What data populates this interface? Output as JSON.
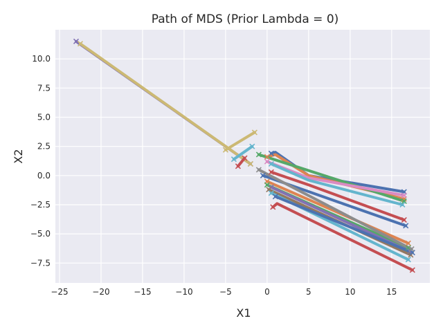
{
  "chart_data": {
    "type": "line",
    "title": "Path of MDS (Prior Lambda = 0)",
    "xlabel": "X1",
    "ylabel": "X2",
    "xlim": [
      -25.5,
      19.6
    ],
    "ylim": [
      -9.2,
      12.5
    ],
    "xticks": [
      -25,
      -20,
      -15,
      -10,
      -5,
      0,
      5,
      10,
      15
    ],
    "xtick_labels": [
      "−25",
      "−20",
      "−15",
      "−10",
      "−5",
      "0",
      "5",
      "10",
      "15"
    ],
    "yticks": [
      -7.5,
      -5.0,
      -2.5,
      0.0,
      2.5,
      5.0,
      7.5,
      10.0
    ],
    "ytick_labels": [
      "−7.5",
      "−5.0",
      "−2.5",
      "0.0",
      "2.5",
      "5.0",
      "7.5",
      "10.0"
    ],
    "grid": true,
    "background": "#eaeaf2",
    "series": [
      {
        "color": "#8172b3",
        "points": [
          [
            -23.0,
            11.5
          ],
          [
            -2.0,
            1.0
          ]
        ]
      },
      {
        "color": "#ccb974",
        "points": [
          [
            -22.5,
            11.3
          ],
          [
            -2.0,
            1.0
          ]
        ]
      },
      {
        "color": "#ccb974",
        "points": [
          [
            -5.0,
            2.2
          ],
          [
            -1.5,
            3.7
          ]
        ]
      },
      {
        "color": "#64b5cd",
        "points": [
          [
            -4.0,
            1.4
          ],
          [
            -1.8,
            2.5
          ]
        ]
      },
      {
        "color": "#c44e52",
        "points": [
          [
            -3.5,
            0.8
          ],
          [
            -2.7,
            1.5
          ]
        ]
      },
      {
        "color": "#4c72b0",
        "points": [
          [
            0.5,
            1.9
          ],
          [
            1.0,
            2.0
          ],
          [
            5.0,
            0.0
          ],
          [
            16.5,
            -1.4
          ]
        ]
      },
      {
        "color": "#dd8452",
        "points": [
          [
            0.0,
            1.6
          ],
          [
            1.0,
            1.8
          ],
          [
            5.0,
            0.0
          ],
          [
            16.5,
            -2.0
          ]
        ]
      },
      {
        "color": "#55a868",
        "points": [
          [
            -1.0,
            1.8
          ],
          [
            16.5,
            -2.2
          ]
        ]
      },
      {
        "color": "#da8bc3",
        "points": [
          [
            0.0,
            1.2
          ],
          [
            5.0,
            -0.2
          ],
          [
            16.5,
            -1.7
          ]
        ]
      },
      {
        "color": "#64b5cd",
        "points": [
          [
            0.5,
            1.0
          ],
          [
            5.0,
            -0.4
          ],
          [
            16.3,
            -2.5
          ]
        ]
      },
      {
        "color": "#c44e52",
        "points": [
          [
            0.5,
            0.3
          ],
          [
            5.0,
            -0.8
          ],
          [
            16.5,
            -3.8
          ]
        ]
      },
      {
        "color": "#4c72b0",
        "points": [
          [
            -0.5,
            0.0
          ],
          [
            16.7,
            -4.3
          ]
        ]
      },
      {
        "color": "#dd8452",
        "points": [
          [
            0.0,
            -0.5
          ],
          [
            17.0,
            -5.8
          ]
        ]
      },
      {
        "color": "#55a868",
        "points": [
          [
            0.0,
            -0.8
          ],
          [
            17.0,
            -6.2
          ]
        ]
      },
      {
        "color": "#8172b3",
        "points": [
          [
            0.5,
            -1.0
          ],
          [
            17.2,
            -6.5
          ]
        ]
      },
      {
        "color": "#937860",
        "points": [
          [
            0.2,
            -1.2
          ],
          [
            17.3,
            -6.8
          ]
        ]
      },
      {
        "color": "#64b5cd",
        "points": [
          [
            0.5,
            -1.5
          ],
          [
            17.0,
            -7.2
          ]
        ]
      },
      {
        "color": "#c44e52",
        "points": [
          [
            0.7,
            -2.7
          ],
          [
            1.2,
            -2.4
          ],
          [
            17.5,
            -8.1
          ]
        ]
      },
      {
        "color": "#4c72b0",
        "points": [
          [
            1.0,
            -1.8
          ],
          [
            17.5,
            -6.6
          ]
        ]
      },
      {
        "color": "#8c8c8c",
        "points": [
          [
            -1.0,
            0.5
          ],
          [
            17.4,
            -6.3
          ]
        ]
      }
    ]
  }
}
